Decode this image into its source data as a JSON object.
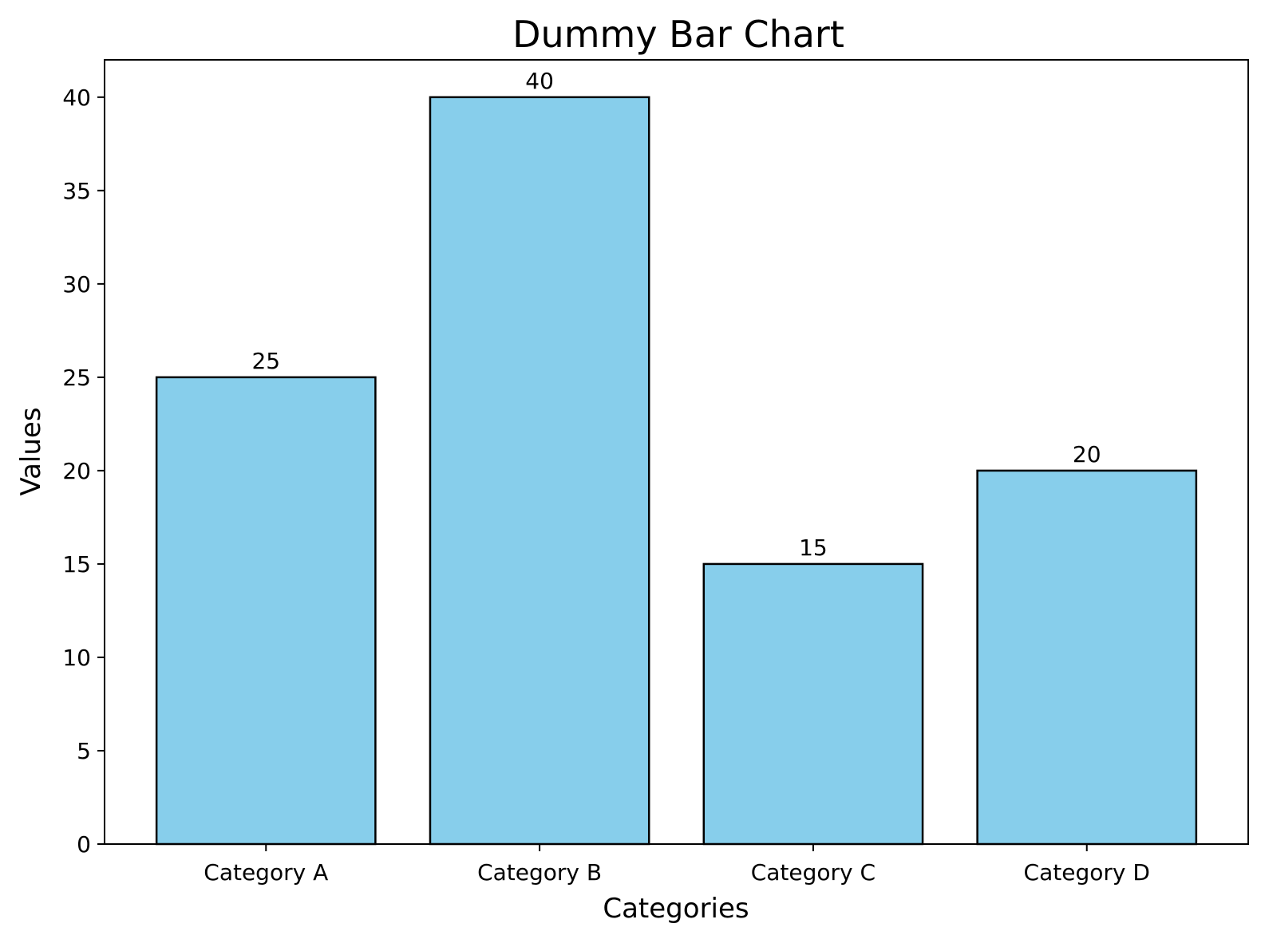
{
  "chart_data": {
    "type": "bar",
    "title": "Dummy Bar Chart",
    "xlabel": "Categories",
    "ylabel": "Values",
    "categories": [
      "Category A",
      "Category B",
      "Category C",
      "Category D"
    ],
    "values": [
      25,
      40,
      15,
      20
    ],
    "data_labels": [
      "25",
      "40",
      "15",
      "20"
    ],
    "ylim": [
      0,
      42
    ],
    "yticks": [
      0,
      5,
      10,
      15,
      20,
      25,
      30,
      35,
      40
    ],
    "grid": false,
    "legend": false,
    "colors": {
      "bar_fill": "#87CEEB",
      "bar_edge": "#000000",
      "text": "#000000",
      "background": "#ffffff"
    }
  }
}
